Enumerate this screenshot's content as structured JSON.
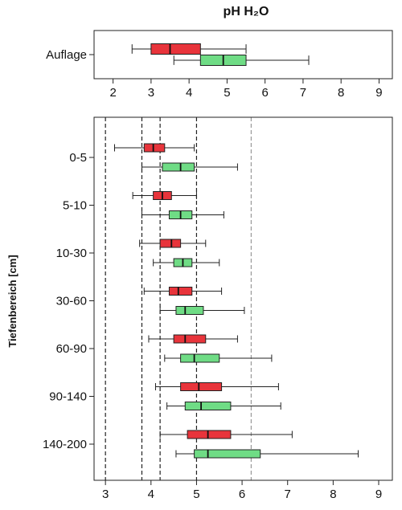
{
  "chart_data": {
    "type": "box",
    "title": "pH H₂O",
    "colors": {
      "red": "#e8343b",
      "green": "#6fdc85"
    },
    "panels": [
      {
        "name": "top",
        "categories": [
          "Auflage"
        ],
        "xlim": [
          1.5,
          9.35
        ],
        "xticks": [
          2,
          3,
          4,
          5,
          6,
          7,
          8,
          9
        ],
        "boxes": [
          {
            "category": "Auflage",
            "color": "red",
            "min": 2.5,
            "q1": 3.0,
            "median": 3.5,
            "q3": 4.3,
            "max": 5.5
          },
          {
            "category": "Auflage",
            "color": "green",
            "min": 3.6,
            "q1": 4.3,
            "median": 4.9,
            "q3": 5.5,
            "max": 7.15
          }
        ]
      },
      {
        "name": "bottom",
        "ylabel": "Tiefenbereich [cm]",
        "categories": [
          "0-5",
          "5-10",
          "10-30",
          "30-60",
          "60-90",
          "90-140",
          "140-200"
        ],
        "xlim": [
          2.75,
          9.3
        ],
        "xticks": [
          3,
          4,
          5,
          6,
          7,
          8,
          9
        ],
        "reference_lines": [
          3.0,
          3.8,
          4.2,
          5.0,
          6.2
        ],
        "boxes": [
          {
            "category": "0-5",
            "color": "red",
            "min": 3.2,
            "q1": 3.85,
            "median": 4.05,
            "q3": 4.3,
            "max": 4.95
          },
          {
            "category": "0-5",
            "color": "green",
            "min": 3.8,
            "q1": 4.25,
            "median": 4.65,
            "q3": 4.95,
            "max": 5.9
          },
          {
            "category": "5-10",
            "color": "red",
            "min": 3.6,
            "q1": 4.05,
            "median": 4.25,
            "q3": 4.45,
            "max": 5.0
          },
          {
            "category": "5-10",
            "color": "green",
            "min": 3.8,
            "q1": 4.4,
            "median": 4.65,
            "q3": 4.9,
            "max": 5.6
          },
          {
            "category": "10-30",
            "color": "red",
            "min": 3.75,
            "q1": 4.2,
            "median": 4.45,
            "q3": 4.65,
            "max": 5.2
          },
          {
            "category": "10-30",
            "color": "green",
            "min": 4.05,
            "q1": 4.5,
            "median": 4.7,
            "q3": 4.9,
            "max": 5.5
          },
          {
            "category": "30-60",
            "color": "red",
            "min": 3.85,
            "q1": 4.4,
            "median": 4.6,
            "q3": 4.9,
            "max": 5.55
          },
          {
            "category": "30-60",
            "color": "green",
            "min": 4.2,
            "q1": 4.55,
            "median": 4.75,
            "q3": 5.15,
            "max": 6.05
          },
          {
            "category": "60-90",
            "color": "red",
            "min": 3.95,
            "q1": 4.5,
            "median": 4.75,
            "q3": 5.2,
            "max": 5.9
          },
          {
            "category": "60-90",
            "color": "green",
            "min": 4.3,
            "q1": 4.65,
            "median": 4.95,
            "q3": 5.5,
            "max": 6.65
          },
          {
            "category": "90-140",
            "color": "red",
            "min": 4.1,
            "q1": 4.65,
            "median": 5.05,
            "q3": 5.55,
            "max": 6.8
          },
          {
            "category": "90-140",
            "color": "green",
            "min": 4.35,
            "q1": 4.75,
            "median": 5.1,
            "q3": 5.75,
            "max": 6.85
          },
          {
            "category": "140-200",
            "color": "red",
            "min": 4.2,
            "q1": 4.8,
            "median": 5.25,
            "q3": 5.75,
            "max": 7.1
          },
          {
            "category": "140-200",
            "color": "green",
            "min": 4.55,
            "q1": 4.95,
            "median": 5.25,
            "q3": 6.4,
            "max": 8.55
          }
        ]
      }
    ]
  }
}
